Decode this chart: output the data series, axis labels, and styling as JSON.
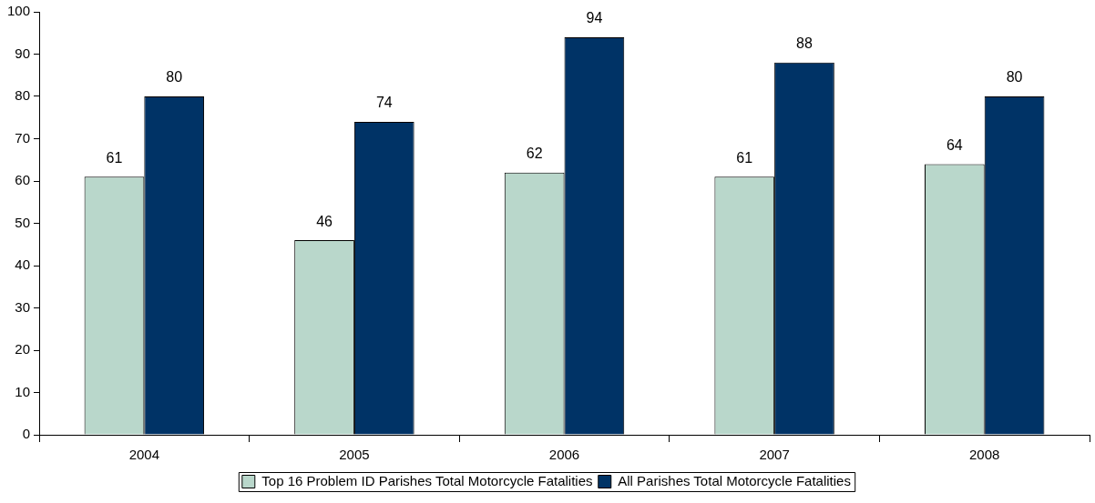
{
  "chart_data": {
    "type": "bar",
    "categories": [
      "2004",
      "2005",
      "2006",
      "2007",
      "2008"
    ],
    "series": [
      {
        "name": "Top 16 Problem ID Parishes Total Motorcycle Fatalities",
        "color": "#b9d7cb",
        "values": [
          61,
          46,
          62,
          61,
          64
        ]
      },
      {
        "name": "All Parishes Total Motorcycle Fatalities",
        "color": "#003366",
        "values": [
          80,
          74,
          94,
          88,
          80
        ]
      }
    ],
    "ylim": [
      0,
      100
    ],
    "yticks": [
      0,
      10,
      20,
      30,
      40,
      50,
      60,
      70,
      80,
      90,
      100
    ],
    "grid": false,
    "legend": "bottom",
    "data_labels": true
  }
}
